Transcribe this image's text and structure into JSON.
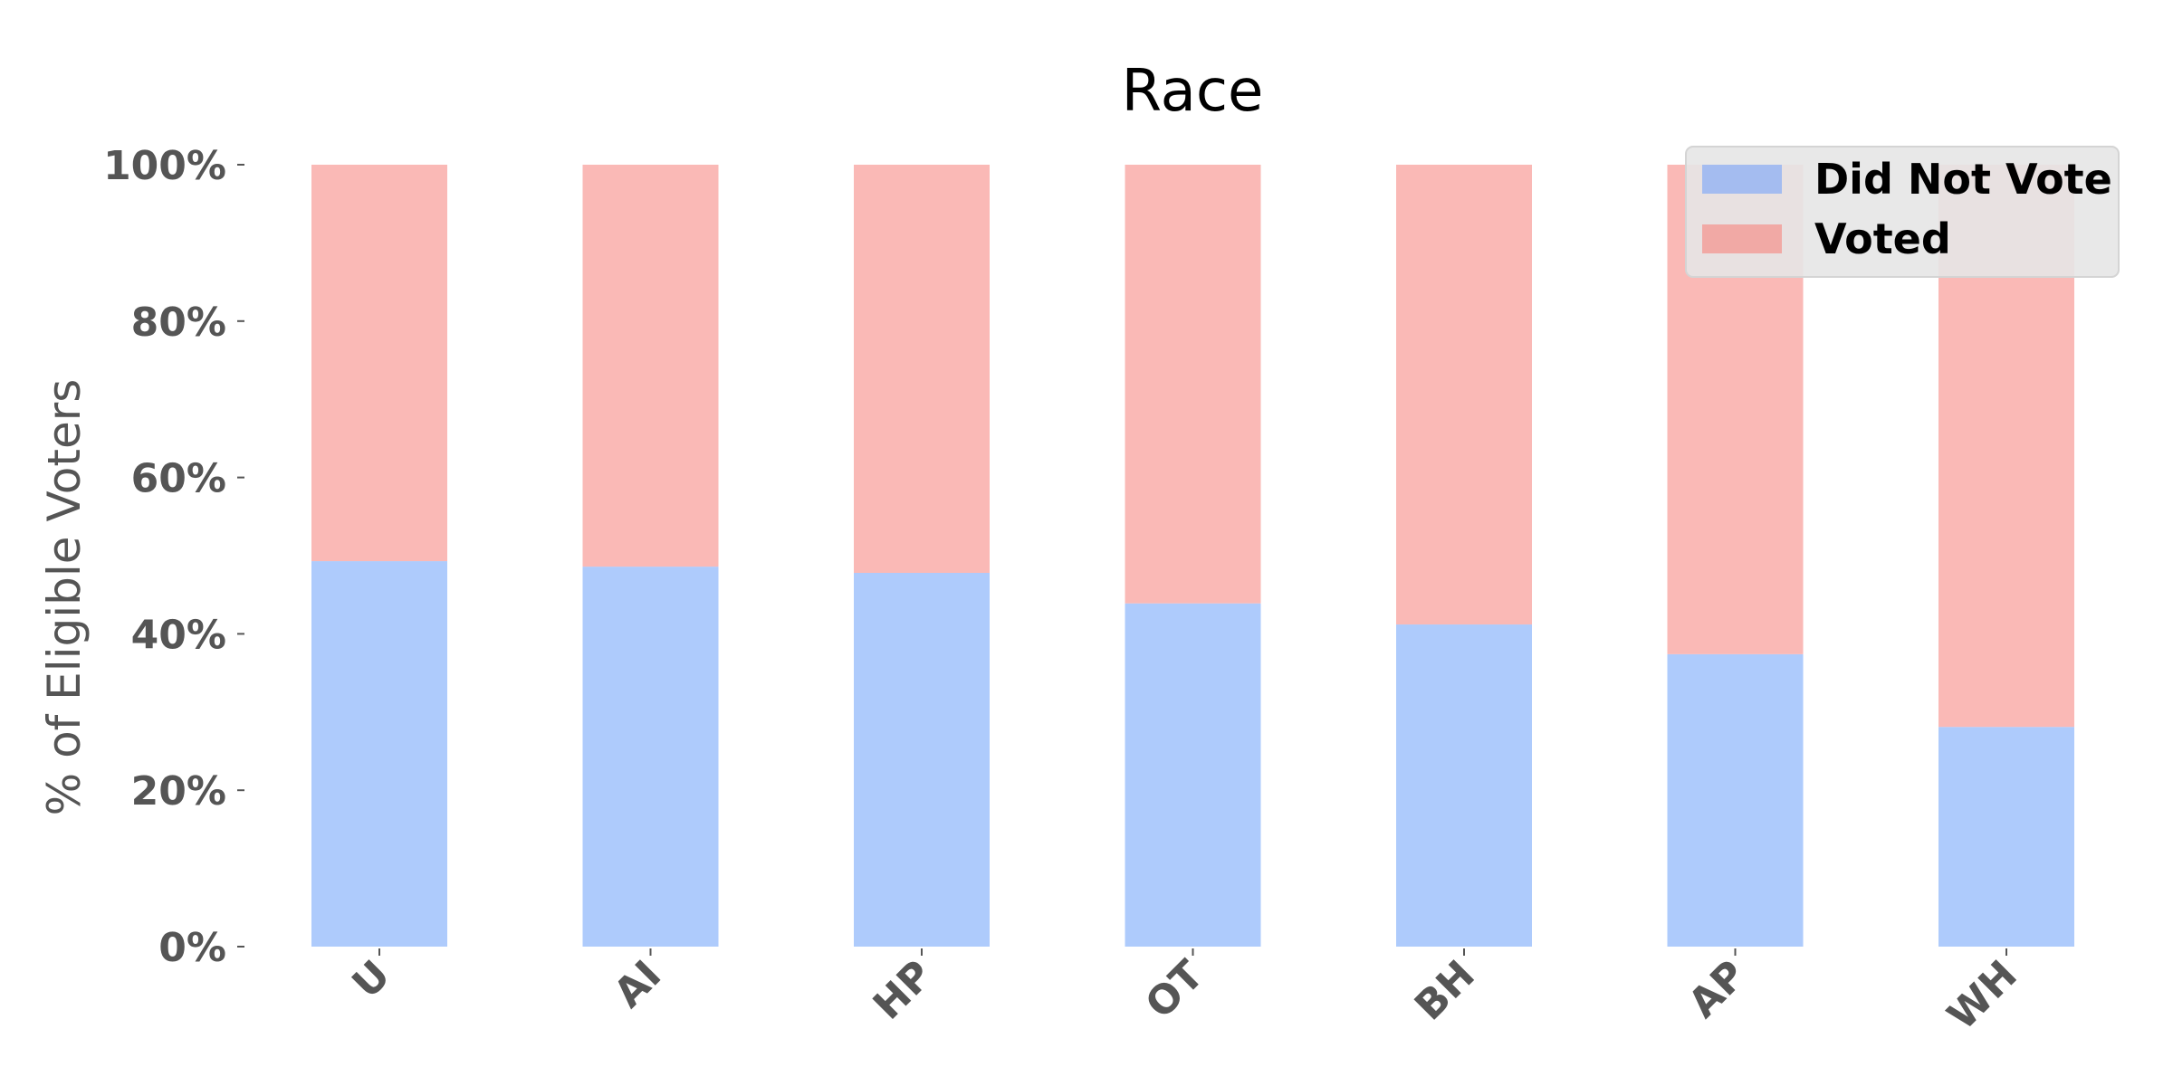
{
  "chart_data": {
    "type": "bar",
    "stacked": true,
    "title": "Race",
    "xlabel": "",
    "ylabel": "% of Eligible Voters",
    "ylim": [
      0,
      100
    ],
    "yticks": [
      "0%",
      "20%",
      "40%",
      "60%",
      "80%",
      "100%"
    ],
    "categories": [
      "U",
      "AI",
      "HP",
      "OT",
      "BH",
      "AP",
      "WH"
    ],
    "series": [
      {
        "name": "Did Not Vote",
        "color": "#aecbfc",
        "values": [
          49.3,
          48.6,
          47.8,
          43.9,
          41.2,
          37.4,
          28.1
        ]
      },
      {
        "name": "Voted",
        "color": "#fab9b6",
        "values": [
          50.7,
          51.4,
          52.2,
          56.1,
          58.8,
          62.6,
          71.9
        ]
      }
    ],
    "legend": {
      "position": "top-right",
      "entries": [
        "Did Not Vote",
        "Voted"
      ]
    },
    "grid": false
  }
}
